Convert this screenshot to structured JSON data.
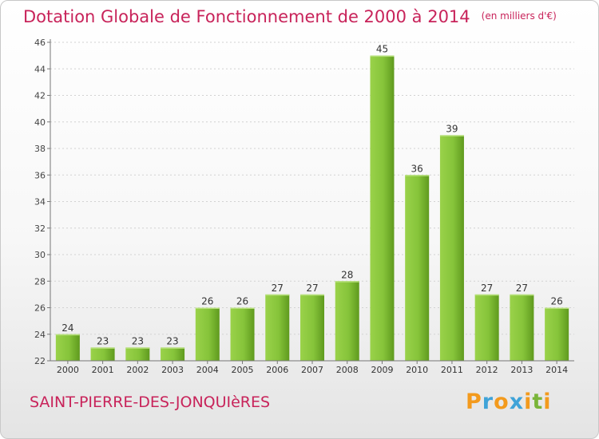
{
  "header": {
    "title": "Dotation Globale de Fonctionnement de 2000 à 2014",
    "unit": "(en milliers d'€)"
  },
  "footer": {
    "commune": "SAINT-PIERRE-DES-JONQUIèRES",
    "logo": [
      "P",
      "r",
      "o",
      "x",
      "i",
      "t",
      "i"
    ],
    "logo_colors": [
      "#f39a1d",
      "#3fa3d8",
      "#f39a1d",
      "#3fa3d8",
      "#f39a1d",
      "#7ab53a",
      "#f39a1d"
    ]
  },
  "chart_data": {
    "type": "bar",
    "categories": [
      "2000",
      "2001",
      "2002",
      "2003",
      "2004",
      "2005",
      "2006",
      "2007",
      "2008",
      "2009",
      "2010",
      "2011",
      "2012",
      "2013",
      "2014"
    ],
    "values": [
      24,
      23,
      23,
      23,
      26,
      26,
      27,
      27,
      28,
      45,
      36,
      39,
      27,
      27,
      26
    ],
    "title": "Dotation Globale de Fonctionnement de 2000 à 2014",
    "xlabel": "",
    "ylabel": "",
    "ylim": [
      22,
      46
    ],
    "yticks": [
      22,
      24,
      26,
      28,
      30,
      32,
      34,
      36,
      38,
      40,
      42,
      44,
      46
    ],
    "grid": true,
    "bar_color": "#7cba2a"
  }
}
